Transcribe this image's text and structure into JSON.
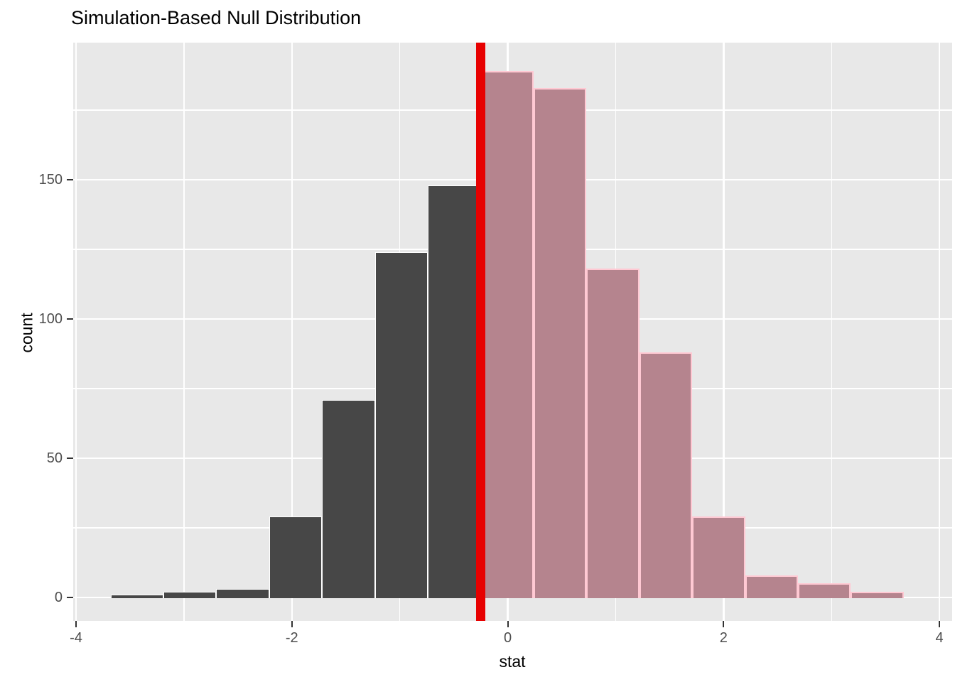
{
  "page": {
    "background": "#FFFFFF"
  },
  "chart_data": {
    "type": "bar",
    "subtype": "histogram",
    "title": "Simulation-Based Null Distribution",
    "xlabel": "stat",
    "ylabel": "count",
    "x_tick_values": [
      -4,
      -2,
      0,
      2,
      4
    ],
    "x_tick_labels": [
      "-4",
      "-2",
      "0",
      "2",
      "4"
    ],
    "x_minor_tick_values": [
      -3,
      -1,
      1,
      3
    ],
    "y_tick_values": [
      0,
      50,
      100,
      150
    ],
    "y_tick_labels": [
      "0",
      "50",
      "100",
      "150"
    ],
    "y_minor_tick_values": [
      25,
      75,
      125,
      175
    ],
    "xlim": [
      -4.05,
      4.1
    ],
    "ylim": [
      0,
      199
    ],
    "grid": true,
    "bin_edges": [
      -3.68,
      -3.19,
      -2.7,
      -2.21,
      -1.72,
      -1.23,
      -0.74,
      -0.25,
      0.24,
      0.73,
      1.22,
      1.71,
      2.2,
      2.69,
      3.18,
      3.67
    ],
    "counts": [
      1,
      2,
      3,
      29,
      71,
      124,
      148,
      189,
      183,
      118,
      88,
      29,
      8,
      5,
      2
    ],
    "total_simulations": 1000,
    "observed_stat": -0.25,
    "shade_direction": "right",
    "colors": {
      "panel_background": "#E8E8E8",
      "grid": "#FFFFFF",
      "null_bar_fill": "#474747",
      "null_bar_border": "#FFFFFF",
      "shaded_bar_fill": "#B5848E",
      "shaded_bar_border": "#FFC9D3",
      "observed_line": "#E70000",
      "tick_label": "#4D4D4D",
      "title_text": "#000000"
    }
  }
}
